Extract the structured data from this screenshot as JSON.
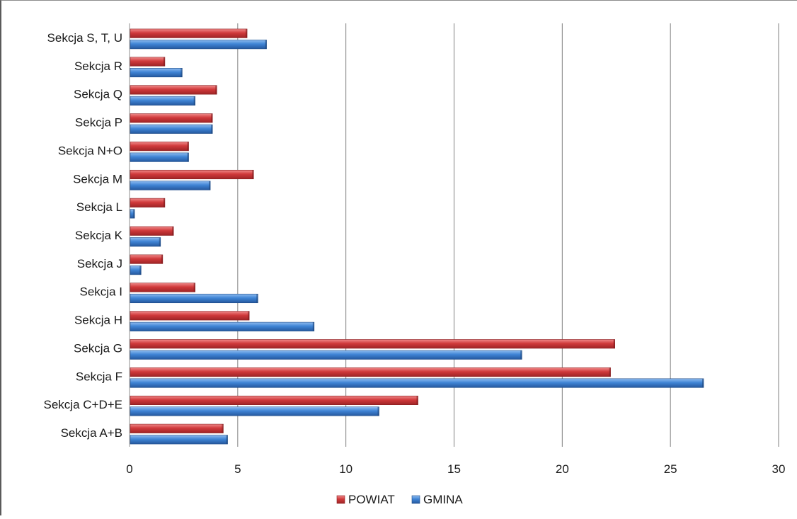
{
  "chart_data": {
    "type": "bar",
    "orientation": "horizontal",
    "categories": [
      "Sekcja A+B",
      "Sekcja C+D+E",
      "Sekcja F",
      "Sekcja G",
      "Sekcja H",
      "Sekcja I",
      "Sekcja J",
      "Sekcja K",
      "Sekcja L",
      "Sekcja M",
      "Sekcja N+O",
      "Sekcja P",
      "Sekcja Q",
      "Sekcja R",
      "Sekcja S, T, U"
    ],
    "series": [
      {
        "name": "POWIAT",
        "color": "#d0393b",
        "values": [
          4.3,
          13.3,
          22.2,
          22.4,
          5.5,
          3.0,
          1.5,
          2.0,
          1.6,
          5.7,
          2.7,
          3.8,
          4.0,
          1.6,
          5.4
        ]
      },
      {
        "name": "GMINA",
        "color": "#3f84d5",
        "values": [
          4.5,
          11.5,
          26.5,
          18.1,
          8.5,
          5.9,
          0.5,
          1.4,
          0.2,
          3.7,
          2.7,
          3.8,
          3.0,
          2.4,
          6.3
        ]
      }
    ],
    "x_ticks": [
      "0",
      "5",
      "10",
      "15",
      "20",
      "25",
      "30"
    ],
    "xlim": [
      0,
      30
    ],
    "grid": "vertical",
    "legend_position": "bottom"
  }
}
